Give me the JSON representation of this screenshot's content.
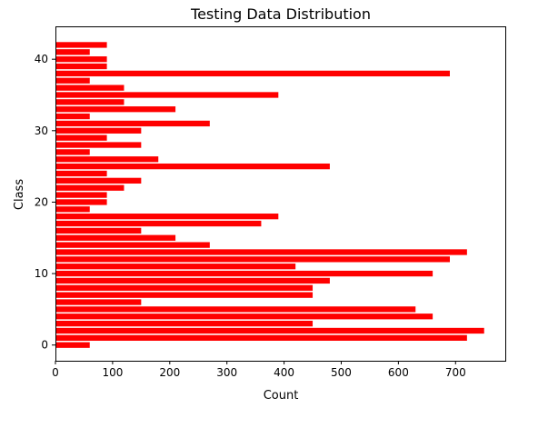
{
  "chart_data": {
    "type": "bar",
    "orientation": "horizontal",
    "title": "Testing Data Distribution",
    "xlabel": "Count",
    "ylabel": "Class",
    "bar_color": "#ff0000",
    "grid": false,
    "xlim": [
      0,
      787
    ],
    "ylim": [
      -2.2,
      44.6
    ],
    "x_ticks": [
      0,
      100,
      200,
      300,
      400,
      500,
      600,
      700
    ],
    "y_ticks": [
      0,
      10,
      20,
      30,
      40
    ],
    "categories": [
      0,
      1,
      2,
      3,
      4,
      5,
      6,
      7,
      8,
      9,
      10,
      11,
      12,
      13,
      14,
      15,
      16,
      17,
      18,
      19,
      20,
      21,
      22,
      23,
      24,
      25,
      26,
      27,
      28,
      29,
      30,
      31,
      32,
      33,
      34,
      35,
      36,
      37,
      38,
      39,
      40,
      41,
      42
    ],
    "values": [
      60,
      720,
      750,
      450,
      660,
      630,
      150,
      450,
      450,
      480,
      660,
      420,
      690,
      720,
      270,
      210,
      150,
      360,
      390,
      60,
      90,
      90,
      120,
      150,
      90,
      480,
      180,
      60,
      150,
      90,
      150,
      270,
      60,
      210,
      120,
      390,
      120,
      60,
      690,
      90,
      90,
      60,
      90
    ]
  }
}
